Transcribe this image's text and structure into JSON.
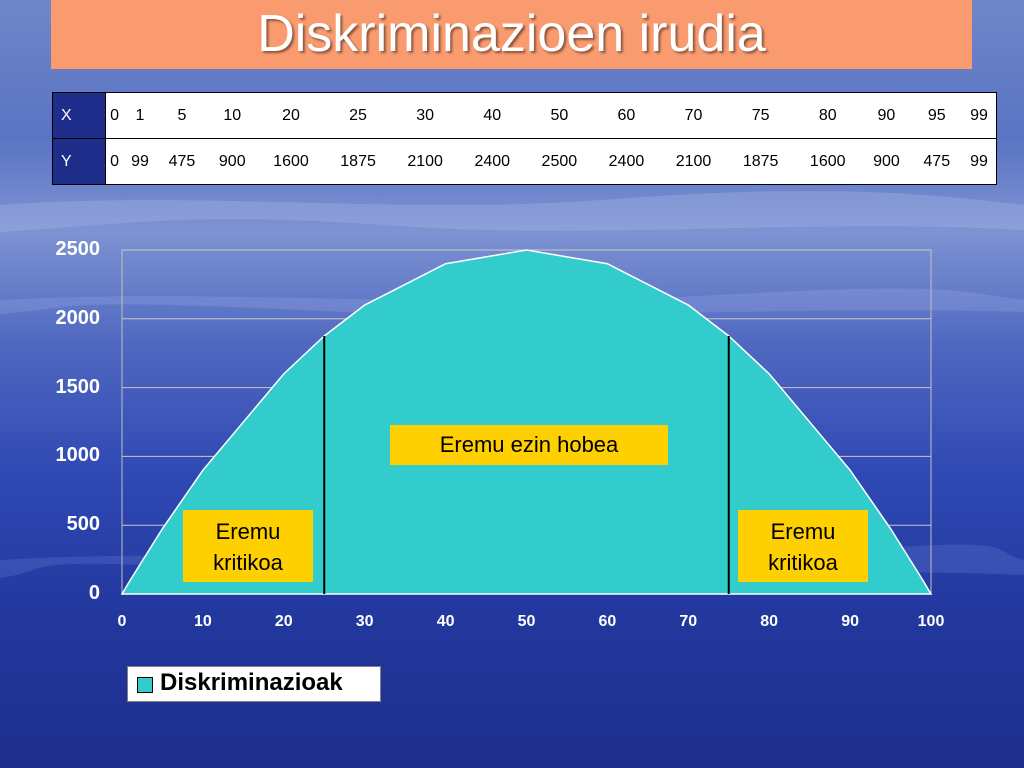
{
  "title": "Diskriminazioen irudia",
  "table": {
    "x_header": "X",
    "y_header": "Y",
    "x_values": [
      "0",
      "1",
      "5",
      "10",
      "20",
      "25",
      "30",
      "40",
      "50",
      "60",
      "70",
      "75",
      "80",
      "90",
      "95",
      "99"
    ],
    "y_values": [
      "0",
      "99",
      "475",
      "900",
      "1600",
      "1875",
      "2100",
      "2400",
      "2500",
      "2400",
      "2100",
      "1875",
      "1600",
      "900",
      "475",
      "99"
    ]
  },
  "chart_data": {
    "type": "area",
    "x": [
      0,
      1,
      5,
      10,
      20,
      25,
      30,
      40,
      50,
      60,
      70,
      75,
      80,
      90,
      95,
      99,
      100
    ],
    "series": [
      {
        "name": "Diskriminazioak",
        "values": [
          0,
          99,
          475,
          900,
          1600,
          1875,
          2100,
          2400,
          2500,
          2400,
          2100,
          1875,
          1600,
          900,
          475,
          99,
          0
        ]
      }
    ],
    "xlim": [
      0,
      100
    ],
    "ylim": [
      0,
      2500
    ],
    "x_ticks": [
      0,
      10,
      20,
      30,
      40,
      50,
      60,
      70,
      80,
      90,
      100
    ],
    "y_ticks": [
      0,
      500,
      1000,
      1500,
      2000,
      2500
    ],
    "vertical_lines": [
      25,
      75
    ],
    "grid": true,
    "fill_color": "#33cccc",
    "annotations": {
      "left": "Eremu kritikoa",
      "center": "Eremu ezin hobea",
      "right": "Eremu kritikoa"
    },
    "legend": {
      "label": "Diskriminazioak",
      "position": "bottom-left"
    }
  }
}
